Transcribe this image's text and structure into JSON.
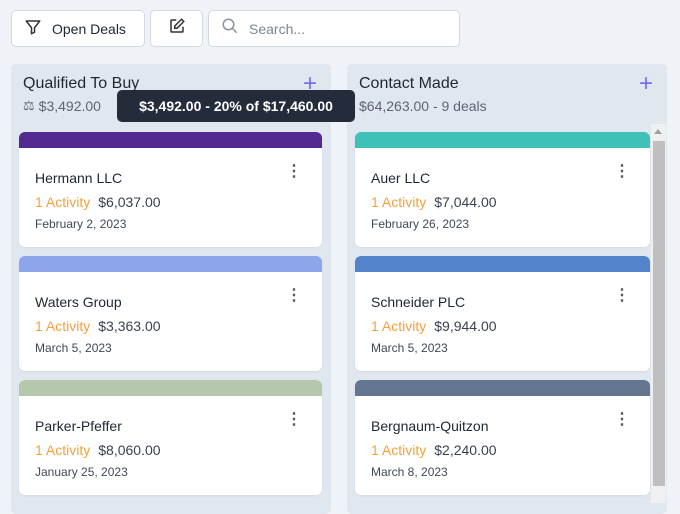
{
  "toolbar": {
    "filter_label": "Open Deals",
    "search_placeholder": "Search..."
  },
  "columns": [
    {
      "title": "Qualified To Buy",
      "subtitle": "$3,492.00",
      "cards": [
        {
          "name": "Hermann LLC",
          "activity": "1 Activity",
          "amount": "$6,037.00",
          "date": "February 2, 2023",
          "color": "#522a8f"
        },
        {
          "name": "Waters Group",
          "activity": "1 Activity",
          "amount": "$3,363.00",
          "date": "March 5, 2023",
          "color": "#8da6e9"
        },
        {
          "name": "Parker-Pfeffer",
          "activity": "1 Activity",
          "amount": "$8,060.00",
          "date": "January 25, 2023",
          "color": "#b5c7ad"
        }
      ]
    },
    {
      "title": "Contact Made",
      "subtitle": "$64,263.00 - 9 deals",
      "cards": [
        {
          "name": "Auer LLC",
          "activity": "1 Activity",
          "amount": "$7,044.00",
          "date": "February 26, 2023",
          "color": "#3ec2b8"
        },
        {
          "name": "Schneider PLC",
          "activity": "1 Activity",
          "amount": "$9,944.00",
          "date": "March 5, 2023",
          "color": "#5383ca"
        },
        {
          "name": "Bergnaum-Quitzon",
          "activity": "1 Activity",
          "amount": "$2,240.00",
          "date": "March 8, 2023",
          "color": "#647590"
        }
      ]
    }
  ],
  "tooltip": "$3,492.00 - 20% of $17,460.00"
}
